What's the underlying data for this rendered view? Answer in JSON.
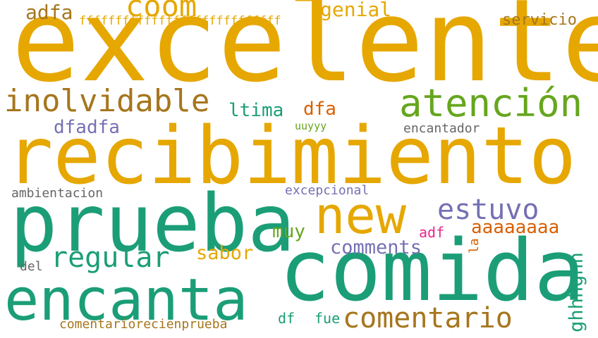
{
  "colors": {
    "gold": "#e6a700",
    "teal": "#1b9e77",
    "brown": "#a6761d",
    "green": "#66a61e",
    "purple": "#7570b3",
    "orange": "#d95f02",
    "pink": "#e7298a",
    "gray": "#666666"
  },
  "words": [
    {
      "id": "excelente",
      "text": "excelente",
      "color": "gold"
    },
    {
      "id": "recibimiento",
      "text": "recibimiento",
      "color": "gold"
    },
    {
      "id": "prueba",
      "text": "prueba",
      "color": "teal"
    },
    {
      "id": "comida",
      "text": "comida",
      "color": "teal"
    },
    {
      "id": "encanta",
      "text": "encanta",
      "color": "teal"
    },
    {
      "id": "atencion",
      "text": "atención",
      "color": "green"
    },
    {
      "id": "new",
      "text": "new",
      "color": "gold"
    },
    {
      "id": "inolvidable",
      "text": "inolvidable",
      "color": "brown"
    },
    {
      "id": "comentario",
      "text": "comentario",
      "color": "brown"
    },
    {
      "id": "coom",
      "text": "coom",
      "color": "gold"
    },
    {
      "id": "estuvo",
      "text": "estuvo",
      "color": "purple"
    },
    {
      "id": "regular",
      "text": "regular",
      "color": "teal"
    },
    {
      "id": "adfa",
      "text": "adfa",
      "color": "brown"
    },
    {
      "id": "genial",
      "text": "genial",
      "color": "gold"
    },
    {
      "id": "servicio",
      "text": "servicio",
      "color": "brown"
    },
    {
      "id": "ffff",
      "text": "ffffffffffffffffffffffffffff",
      "color": "gold"
    },
    {
      "id": "ltima",
      "text": "ltima",
      "color": "teal"
    },
    {
      "id": "dfa",
      "text": "dfa",
      "color": "orange"
    },
    {
      "id": "dfadfa",
      "text": "dfadfa",
      "color": "purple"
    },
    {
      "id": "uuyyy",
      "text": "uuyyy",
      "color": "green"
    },
    {
      "id": "encantador",
      "text": "encantador",
      "color": "gray"
    },
    {
      "id": "ambientacion",
      "text": "ambientacion",
      "color": "gray"
    },
    {
      "id": "excepcional",
      "text": "excepcional",
      "color": "purple"
    },
    {
      "id": "muy",
      "text": "muy",
      "color": "green"
    },
    {
      "id": "aaaaaaaa",
      "text": "aaaaaaaa",
      "color": "orange"
    },
    {
      "id": "adf",
      "text": "adf",
      "color": "pink"
    },
    {
      "id": "la",
      "text": "la",
      "color": "orange"
    },
    {
      "id": "comments",
      "text": "comments",
      "color": "purple"
    },
    {
      "id": "sabor",
      "text": "sabor",
      "color": "gold"
    },
    {
      "id": "ghhhghh",
      "text": "ghhhghh",
      "color": "teal"
    },
    {
      "id": "del",
      "text": "del",
      "color": "gray"
    },
    {
      "id": "df",
      "text": "df",
      "color": "teal"
    },
    {
      "id": "fue",
      "text": "fue",
      "color": "teal"
    },
    {
      "id": "comentariorecienprueba",
      "text": "comentariorecienprueba",
      "color": "brown"
    }
  ]
}
